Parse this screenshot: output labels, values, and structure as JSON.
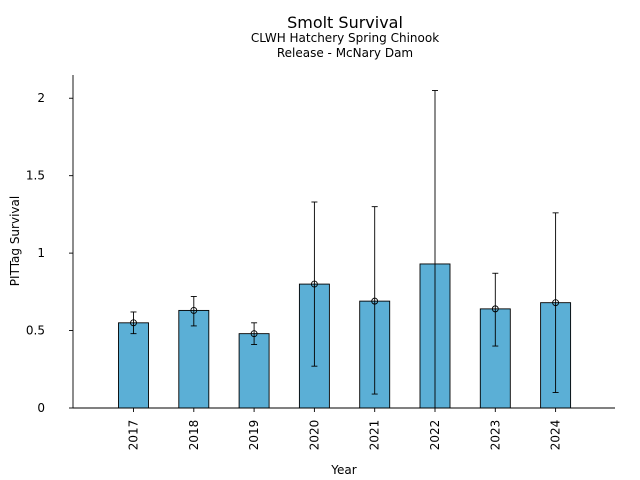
{
  "chart_data": {
    "type": "bar",
    "title": "Smolt Survival",
    "subtitle_lines": [
      "CLWH Hatchery Spring Chinook",
      "Release - McNary Dam"
    ],
    "xlabel": "Year",
    "ylabel": "PITTag Survival",
    "categories": [
      "2017",
      "2018",
      "2019",
      "2020",
      "2021",
      "2022",
      "2023",
      "2024"
    ],
    "values": [
      0.55,
      0.63,
      0.48,
      0.8,
      0.69,
      0.93,
      0.64,
      0.68
    ],
    "point_estimates": [
      0.55,
      0.63,
      0.48,
      0.8,
      0.69,
      null,
      0.64,
      0.68
    ],
    "error_lower": [
      0.48,
      0.53,
      0.41,
      0.27,
      0.09,
      0.0,
      0.4,
      0.1
    ],
    "error_upper": [
      0.62,
      0.72,
      0.55,
      1.33,
      1.3,
      2.05,
      0.87,
      1.26
    ],
    "ylim": [
      0,
      2.15
    ],
    "yticks": [
      0,
      0.5,
      1,
      1.5,
      2
    ],
    "ytick_labels": [
      "0",
      "0.5",
      "1",
      "1.5",
      "2"
    ],
    "grid": false,
    "legend": "none",
    "colors": {
      "bar_fill": "#5bafd6",
      "bar_edge": "#000000",
      "errorbar": "#000000",
      "axis": "#000000"
    }
  }
}
